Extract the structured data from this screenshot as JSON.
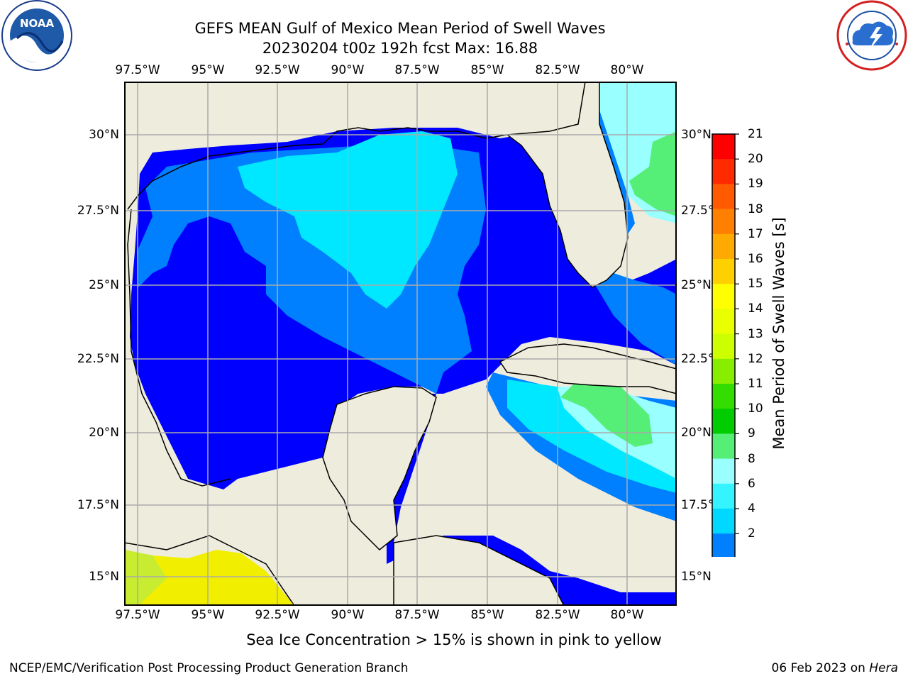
{
  "header": {
    "title_line1": "GEFS MEAN Gulf of Mexico Mean Period of Swell Waves",
    "title_line2": "20230204 t00z 192h fcst   Max: 16.88",
    "left_logo_text": "NOAA",
    "left_logo_ring_text": "NATIONAL OCEANIC AND ATMOSPHERIC ADMINISTRATION · U.S. DEPARTMENT OF COMMERCE",
    "right_logo_ring_text": "NATIONAL WEATHER SERVICE"
  },
  "map": {
    "lon_labels": [
      "97.5°W",
      "95°W",
      "92.5°W",
      "90°W",
      "87.5°W",
      "85°W",
      "82.5°W",
      "80°W"
    ],
    "lat_labels_left": [
      "30°N",
      "27.5°N",
      "25°N",
      "22.5°N",
      "20°N",
      "17.5°N",
      "15°N"
    ],
    "lat_labels_right": [
      "30°N",
      "27.5°N",
      "25°N",
      "22.5°N",
      "20°N",
      "17.5°N",
      "15°N"
    ],
    "colors": {
      "land": "#eeecdc",
      "ocean_deep": "#0000ff",
      "ocean_mid": "#0080ff",
      "ocean_light": "#00e0ff",
      "ocean_pale": "#99ffff",
      "ocean_green": "#55ee77",
      "ice_yellow": "#f4f000",
      "ice_green": "#ccee33"
    }
  },
  "colorbar": {
    "label": "Mean Period of Swell Waves [s]",
    "ticks": [
      "21",
      "20",
      "19",
      "18",
      "17",
      "16",
      "15",
      "14",
      "13",
      "12",
      "11",
      "10",
      "9",
      "8",
      "6",
      "4",
      "2"
    ],
    "colors": [
      "#ff0000",
      "#ff2a00",
      "#ff5a00",
      "#ff8000",
      "#ffaa00",
      "#ffd000",
      "#ffff00",
      "#eaff00",
      "#ccff00",
      "#88ee00",
      "#33dd00",
      "#00cc00",
      "#55ee77",
      "#99ffff",
      "#33f4ff",
      "#00d8ff",
      "#0080ff"
    ],
    "under_color": "#0000ff"
  },
  "notes": {
    "ice_note": "Sea Ice Concentration > 15% is shown in pink to yellow",
    "credit": "NCEP/EMC/Verification Post Processing Product Generation Branch",
    "date_prefix": "06 Feb 2023 on ",
    "host": "Hera"
  }
}
